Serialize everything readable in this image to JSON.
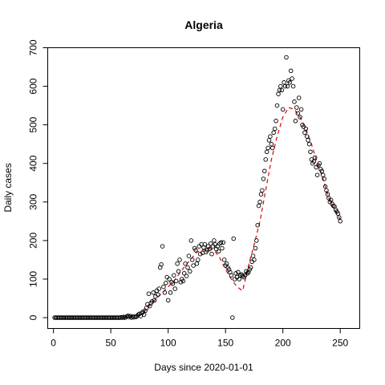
{
  "chart_data": {
    "type": "scatter",
    "title": "Algeria",
    "xlabel": "Days since 2020-01-01",
    "ylabel": "Daily cases",
    "xlim": [
      -5,
      267
    ],
    "ylim": [
      -28,
      700
    ],
    "xticks": [
      0,
      50,
      100,
      150,
      200,
      250
    ],
    "yticks": [
      0,
      100,
      200,
      300,
      400,
      500,
      600,
      700
    ],
    "grid": false,
    "series": [
      {
        "points": [
          [
            1,
            0
          ],
          [
            2,
            0
          ],
          [
            3,
            0
          ],
          [
            4,
            0
          ],
          [
            5,
            0
          ],
          [
            6,
            0
          ],
          [
            7,
            0
          ],
          [
            8,
            0
          ],
          [
            9,
            0
          ],
          [
            10,
            0
          ],
          [
            11,
            0
          ],
          [
            12,
            0
          ],
          [
            13,
            0
          ],
          [
            14,
            0
          ],
          [
            15,
            0
          ],
          [
            16,
            0
          ],
          [
            17,
            0
          ],
          [
            18,
            0
          ],
          [
            19,
            0
          ],
          [
            20,
            0
          ],
          [
            21,
            0
          ],
          [
            22,
            0
          ],
          [
            23,
            0
          ],
          [
            24,
            0
          ],
          [
            25,
            0
          ],
          [
            26,
            0
          ],
          [
            27,
            0
          ],
          [
            28,
            0
          ],
          [
            29,
            0
          ],
          [
            30,
            0
          ],
          [
            31,
            0
          ],
          [
            32,
            0
          ],
          [
            33,
            0
          ],
          [
            34,
            0
          ],
          [
            35,
            0
          ],
          [
            36,
            0
          ],
          [
            37,
            0
          ],
          [
            38,
            0
          ],
          [
            39,
            0
          ],
          [
            40,
            0
          ],
          [
            41,
            0
          ],
          [
            42,
            0
          ],
          [
            43,
            0
          ],
          [
            44,
            0
          ],
          [
            45,
            0
          ],
          [
            46,
            0
          ],
          [
            47,
            0
          ],
          [
            48,
            0
          ],
          [
            49,
            0
          ],
          [
            50,
            0
          ],
          [
            51,
            0
          ],
          [
            52,
            0
          ],
          [
            53,
            0
          ],
          [
            54,
            0
          ],
          [
            55,
            0
          ],
          [
            56,
            0
          ],
          [
            57,
            0
          ],
          [
            58,
            0
          ],
          [
            59,
            1
          ],
          [
            60,
            0
          ],
          [
            61,
            2
          ],
          [
            62,
            0
          ],
          [
            63,
            1
          ],
          [
            64,
            3
          ],
          [
            65,
            5
          ],
          [
            66,
            2
          ],
          [
            67,
            4
          ],
          [
            68,
            0
          ],
          [
            69,
            3
          ],
          [
            70,
            1
          ],
          [
            71,
            3
          ],
          [
            72,
            2
          ],
          [
            73,
            4
          ],
          [
            74,
            8
          ],
          [
            75,
            10
          ],
          [
            76,
            4
          ],
          [
            77,
            12
          ],
          [
            78,
            15
          ],
          [
            79,
            8
          ],
          [
            80,
            18
          ],
          [
            81,
            25
          ],
          [
            82,
            35
          ],
          [
            83,
            62
          ],
          [
            84,
            30
          ],
          [
            85,
            38
          ],
          [
            86,
            42
          ],
          [
            87,
            65
          ],
          [
            88,
            45
          ],
          [
            89,
            55
          ],
          [
            90,
            70
          ],
          [
            91,
            60
          ],
          [
            92,
            75
          ],
          [
            93,
            130
          ],
          [
            94,
            138
          ],
          [
            95,
            185
          ],
          [
            96,
            80
          ],
          [
            97,
            65
          ],
          [
            98,
            90
          ],
          [
            99,
            105
          ],
          [
            100,
            45
          ],
          [
            101,
            100
          ],
          [
            102,
            65
          ],
          [
            103,
            92
          ],
          [
            104,
            88
          ],
          [
            105,
            110
          ],
          [
            106,
            75
          ],
          [
            107,
            95
          ],
          [
            108,
            140
          ],
          [
            109,
            120
          ],
          [
            110,
            150
          ],
          [
            111,
            92
          ],
          [
            112,
            100
          ],
          [
            113,
            95
          ],
          [
            114,
            115
          ],
          [
            115,
            140
          ],
          [
            116,
            108
          ],
          [
            117,
            130
          ],
          [
            118,
            160
          ],
          [
            119,
            120
          ],
          [
            120,
            200
          ],
          [
            121,
            150
          ],
          [
            122,
            135
          ],
          [
            123,
            180
          ],
          [
            124,
            175
          ],
          [
            125,
            140
          ],
          [
            126,
            150
          ],
          [
            127,
            185
          ],
          [
            128,
            165
          ],
          [
            129,
            190
          ],
          [
            130,
            168
          ],
          [
            131,
            182
          ],
          [
            132,
            190
          ],
          [
            133,
            170
          ],
          [
            134,
            175
          ],
          [
            135,
            185
          ],
          [
            136,
            178
          ],
          [
            137,
            192
          ],
          [
            138,
            165
          ],
          [
            139,
            185
          ],
          [
            140,
            200
          ],
          [
            141,
            190
          ],
          [
            142,
            178
          ],
          [
            143,
            185
          ],
          [
            144,
            172
          ],
          [
            145,
            192
          ],
          [
            146,
            195
          ],
          [
            147,
            180
          ],
          [
            148,
            195
          ],
          [
            149,
            150
          ],
          [
            150,
            135
          ],
          [
            151,
            140
          ],
          [
            152,
            130
          ],
          [
            153,
            125
          ],
          [
            154,
            118
          ],
          [
            155,
            110
          ],
          [
            156,
            0
          ],
          [
            157,
            205
          ],
          [
            158,
            100
          ],
          [
            159,
            115
          ],
          [
            160,
            105
          ],
          [
            161,
            118
          ],
          [
            162,
            100
          ],
          [
            163,
            110
          ],
          [
            164,
            112
          ],
          [
            165,
            108
          ],
          [
            166,
            105
          ],
          [
            167,
            110
          ],
          [
            168,
            120
          ],
          [
            169,
            115
          ],
          [
            170,
            118
          ],
          [
            171,
            125
          ],
          [
            172,
            130
          ],
          [
            173,
            145
          ],
          [
            174,
            160
          ],
          [
            175,
            150
          ],
          [
            176,
            180
          ],
          [
            177,
            200
          ],
          [
            178,
            240
          ],
          [
            179,
            290
          ],
          [
            180,
            300
          ],
          [
            181,
            320
          ],
          [
            182,
            330
          ],
          [
            183,
            360
          ],
          [
            184,
            380
          ],
          [
            185,
            410
          ],
          [
            186,
            430
          ],
          [
            187,
            440
          ],
          [
            188,
            460
          ],
          [
            189,
            470
          ],
          [
            190,
            450
          ],
          [
            191,
            440
          ],
          [
            192,
            480
          ],
          [
            193,
            490
          ],
          [
            194,
            510
          ],
          [
            195,
            550
          ],
          [
            196,
            580
          ],
          [
            197,
            590
          ],
          [
            198,
            600
          ],
          [
            199,
            590
          ],
          [
            200,
            540
          ],
          [
            201,
            610
          ],
          [
            202,
            600
          ],
          [
            203,
            675
          ],
          [
            204,
            600
          ],
          [
            205,
            615
          ],
          [
            206,
            610
          ],
          [
            207,
            640
          ],
          [
            208,
            620
          ],
          [
            209,
            600
          ],
          [
            210,
            560
          ],
          [
            211,
            510
          ],
          [
            212,
            545
          ],
          [
            213,
            530
          ],
          [
            214,
            570
          ],
          [
            215,
            520
          ],
          [
            216,
            540
          ],
          [
            217,
            500
          ],
          [
            218,
            495
          ],
          [
            219,
            480
          ],
          [
            220,
            490
          ],
          [
            221,
            470
          ],
          [
            222,
            460
          ],
          [
            223,
            450
          ],
          [
            224,
            430
          ],
          [
            225,
            410
          ],
          [
            226,
            400
          ],
          [
            227,
            405
          ],
          [
            228,
            415
          ],
          [
            229,
            390
          ],
          [
            230,
            370
          ],
          [
            231,
            395
          ],
          [
            232,
            400
          ],
          [
            233,
            385
          ],
          [
            234,
            380
          ],
          [
            235,
            370
          ],
          [
            236,
            360
          ],
          [
            237,
            340
          ],
          [
            238,
            330
          ],
          [
            239,
            320
          ],
          [
            240,
            310
          ],
          [
            241,
            300
          ],
          [
            242,
            305
          ],
          [
            243,
            295
          ],
          [
            244,
            290
          ],
          [
            245,
            288
          ],
          [
            246,
            280
          ],
          [
            247,
            275
          ],
          [
            248,
            270
          ],
          [
            249,
            260
          ],
          [
            250,
            250
          ]
        ]
      },
      {
        "points": [
          [
            60,
            0
          ],
          [
            70,
            3
          ],
          [
            78,
            12
          ],
          [
            85,
            35
          ],
          [
            95,
            65
          ],
          [
            105,
            95
          ],
          [
            115,
            135
          ],
          [
            125,
            170
          ],
          [
            135,
            180
          ],
          [
            140,
            175
          ],
          [
            145,
            155
          ],
          [
            150,
            125
          ],
          [
            155,
            100
          ],
          [
            160,
            80
          ],
          [
            165,
            70
          ],
          [
            170,
            135
          ],
          [
            175,
            190
          ],
          [
            180,
            250
          ],
          [
            185,
            330
          ],
          [
            190,
            410
          ],
          [
            195,
            470
          ],
          [
            200,
            520
          ],
          [
            205,
            545
          ],
          [
            210,
            540
          ],
          [
            215,
            520
          ],
          [
            220,
            490
          ],
          [
            225,
            450
          ],
          [
            230,
            400
          ],
          [
            235,
            360
          ],
          [
            240,
            310
          ],
          [
            245,
            280
          ],
          [
            250,
            255
          ]
        ]
      }
    ]
  }
}
